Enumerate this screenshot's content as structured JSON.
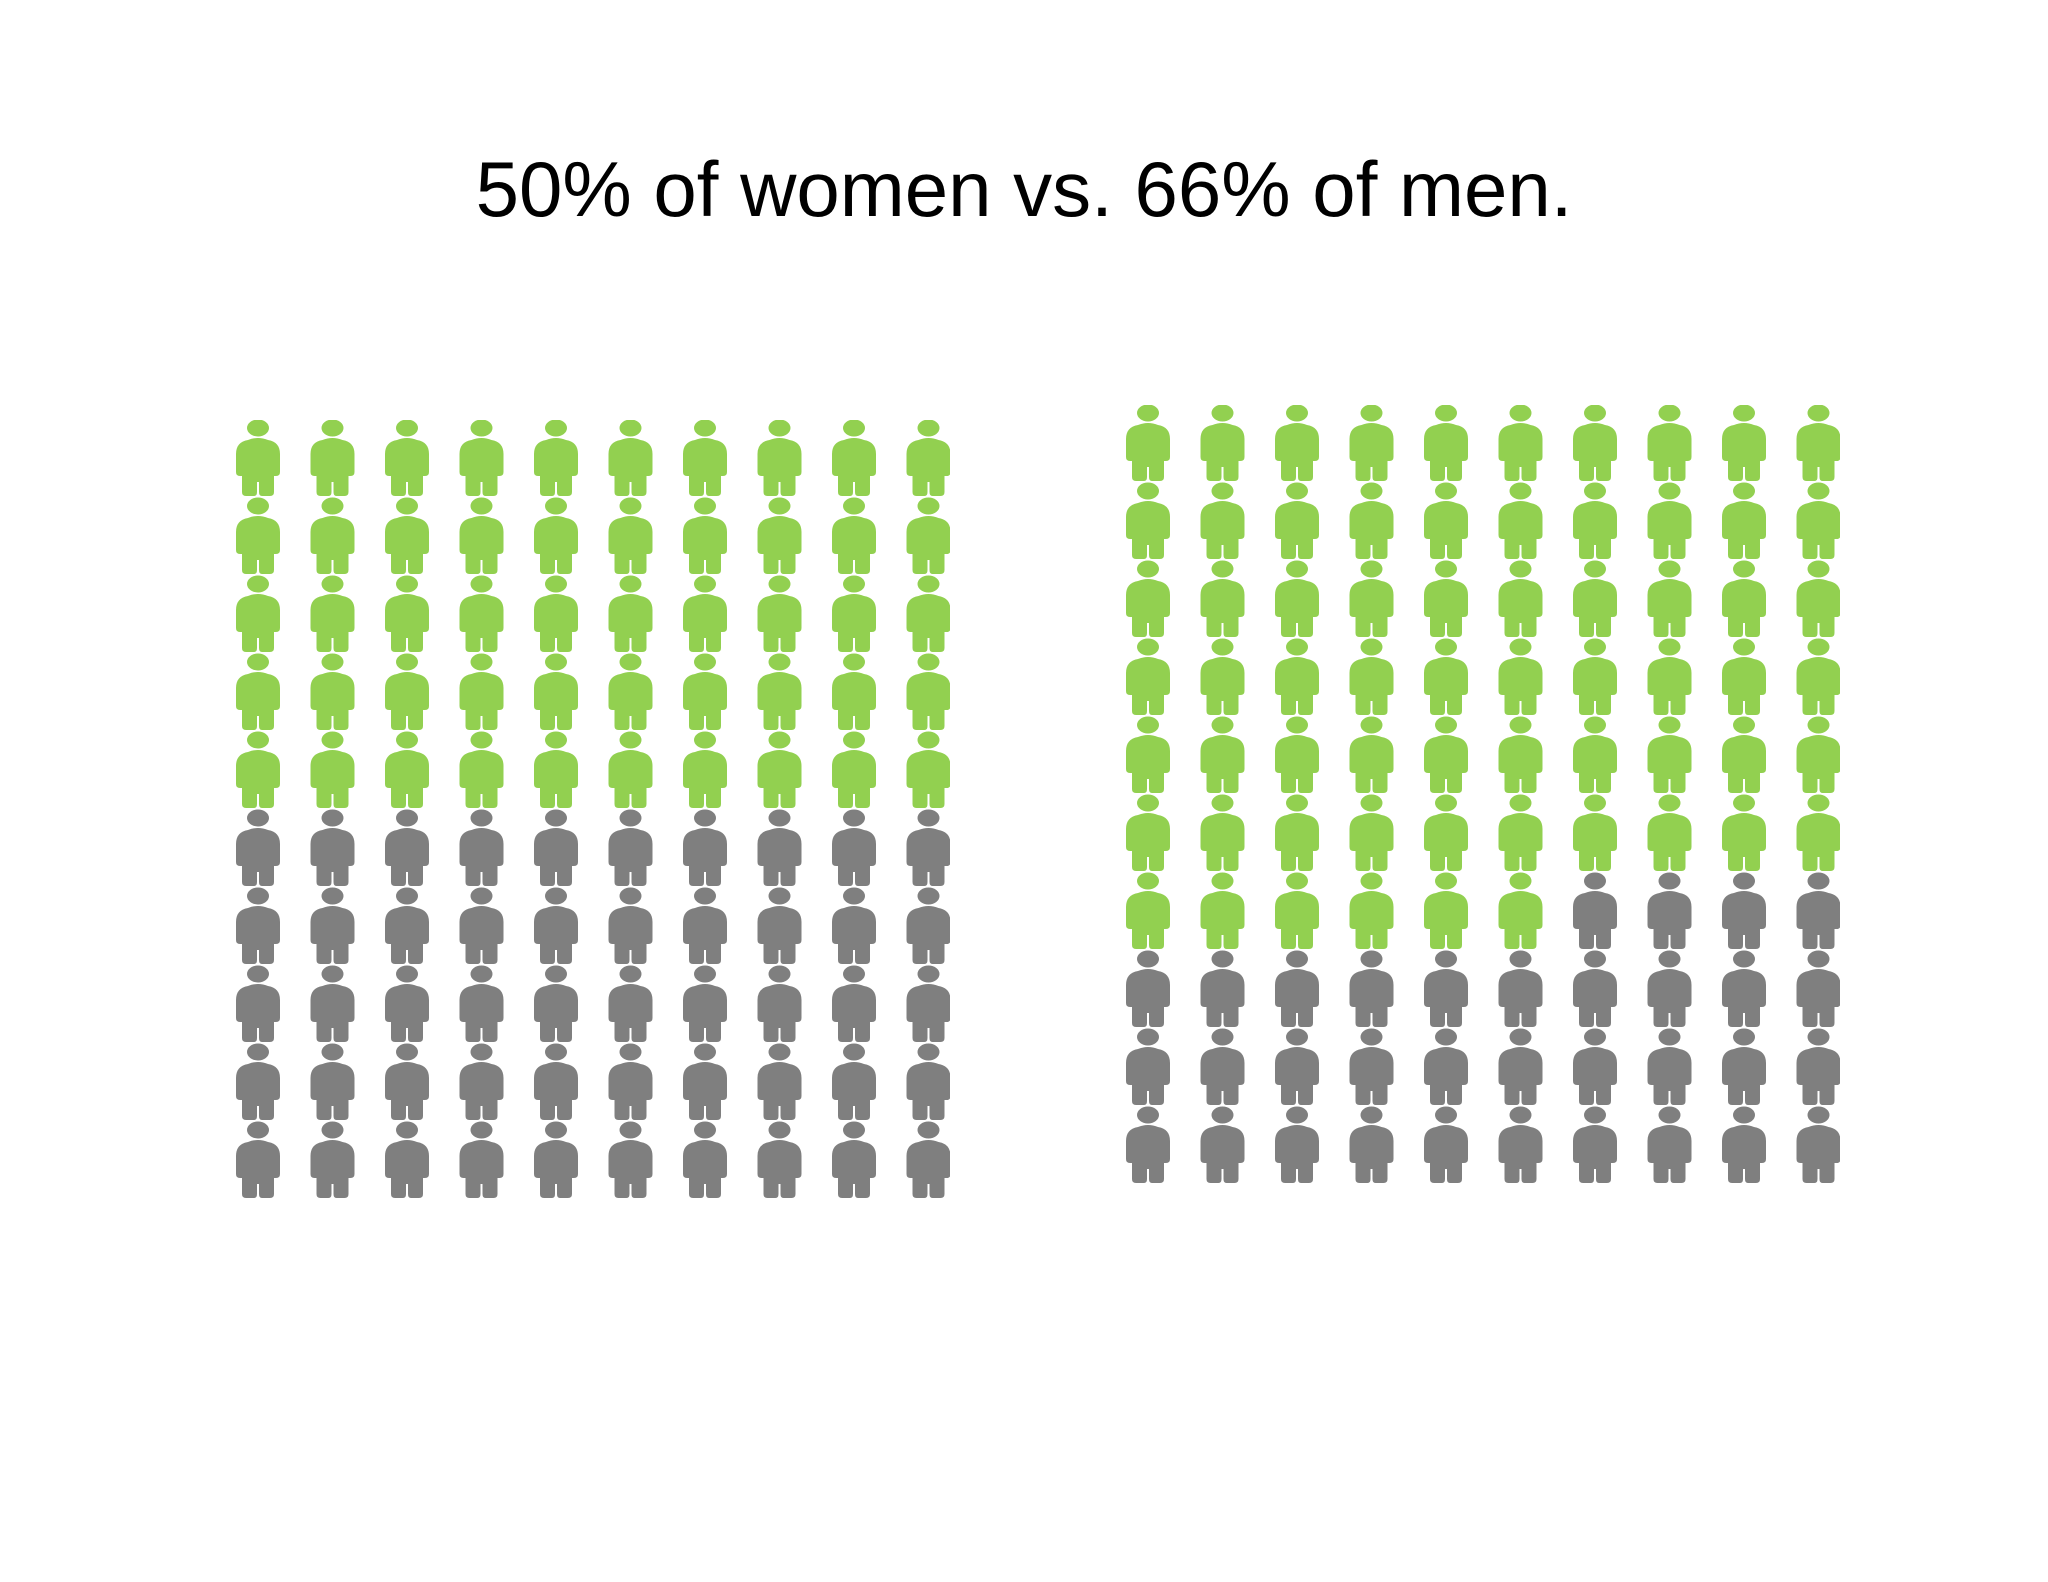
{
  "title": "50% of women vs. 66% of men.",
  "colors": {
    "highlight": "#92d050",
    "base": "#7f7f7f"
  },
  "icon": "person-icon",
  "chart_data": [
    {
      "type": "pictogram",
      "total_icons": 100,
      "columns": 10,
      "rows": 10,
      "fill_order": "row-major-from-top",
      "values": [
        50
      ],
      "highlighted": 50
    },
    {
      "type": "pictogram",
      "total_icons": 100,
      "columns": 10,
      "rows": 10,
      "fill_order": "row-major-from-top",
      "values": [
        66
      ],
      "highlighted": 66
    }
  ]
}
